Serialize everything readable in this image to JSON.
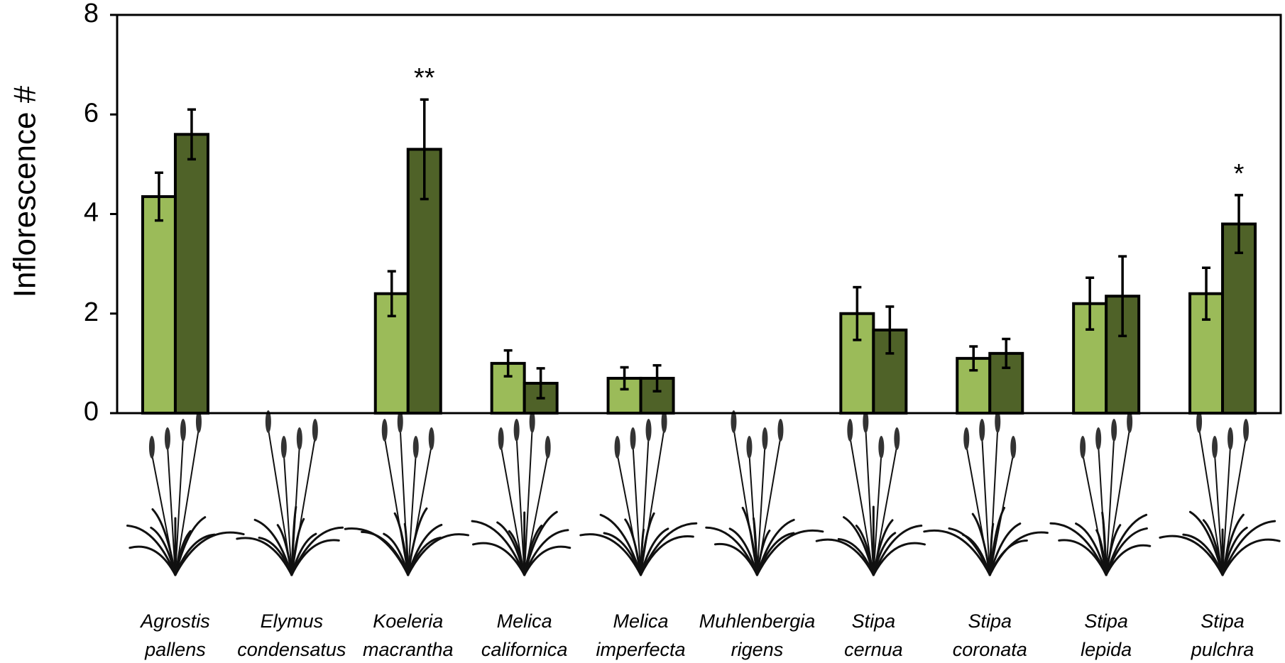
{
  "chart_data": {
    "type": "bar",
    "ylabel": "Inflorescence #",
    "categories": [
      "Agrostis pallens",
      "Elymus condensatus",
      "Koeleria macrantha",
      "Melica californica",
      "Melica imperfecta",
      "Muhlenbergia rigens",
      "Stipa cernua",
      "Stipa coronata",
      "Stipa lepida",
      "Stipa pulchra"
    ],
    "series": [
      {
        "color": "#9bbb59",
        "values": [
          4.35,
          null,
          2.4,
          1.0,
          0.7,
          null,
          2.0,
          1.1,
          2.2,
          2.4
        ],
        "errors": [
          0.48,
          null,
          0.45,
          0.26,
          0.22,
          null,
          0.53,
          0.24,
          0.52,
          0.52
        ]
      },
      {
        "color": "#4f6228",
        "values": [
          5.6,
          null,
          5.3,
          0.6,
          0.7,
          null,
          1.67,
          1.2,
          2.35,
          3.8
        ],
        "errors": [
          0.5,
          null,
          1.0,
          0.3,
          0.26,
          null,
          0.47,
          0.29,
          0.8,
          0.58
        ]
      }
    ],
    "annotations": [
      null,
      null,
      "**",
      null,
      null,
      null,
      null,
      null,
      null,
      "*"
    ],
    "ylim": [
      0,
      8
    ],
    "yticks": [
      0,
      2,
      4,
      6,
      8
    ],
    "grid": false
  }
}
